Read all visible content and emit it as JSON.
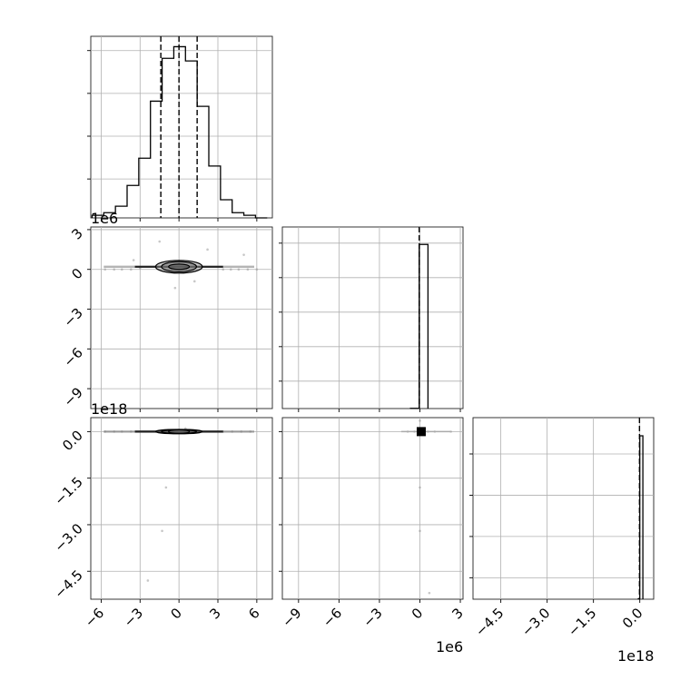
{
  "chart_data": {
    "type": "corner",
    "grid": true,
    "panels": [
      {
        "id": "hist-0",
        "type": "bar",
        "xlim": [
          -6.8,
          7.2
        ],
        "bin_edges": [
          -6.7,
          -5.8,
          -4.9,
          -4.0,
          -3.1,
          -2.2,
          -1.3,
          -0.4,
          0.5,
          1.4,
          2.3,
          3.2,
          4.1,
          5.0,
          5.9,
          6.8
        ],
        "counts": [
          2,
          4,
          9,
          25,
          46,
          90,
          123,
          132,
          121,
          86,
          40,
          14,
          4,
          2,
          0
        ],
        "ylim": [
          0,
          140
        ],
        "quantiles": [
          -1.4,
          0.0,
          1.4
        ],
        "ytick_values": [
          30,
          63,
          96,
          129
        ]
      },
      {
        "id": "scatter-1-0",
        "type": "scatter",
        "xlim": [
          -6.8,
          7.2
        ],
        "ylim": [
          -10.5,
          3.2
        ],
        "yticks": [
          3,
          0,
          -3,
          -6,
          -9
        ],
        "y_offset_label": "1e6",
        "contour_center": [
          0,
          0.2
        ],
        "contour_widths": [
          1.8,
          1.35,
          0.8
        ],
        "contour_heights": [
          0.48,
          0.38,
          0.2
        ],
        "points": [
          [
            -5.7,
            0
          ],
          [
            -5,
            0
          ],
          [
            -4.4,
            0
          ],
          [
            -3.7,
            0
          ],
          [
            -3,
            0.1
          ],
          [
            3.4,
            0
          ],
          [
            4,
            0
          ],
          [
            4.6,
            0
          ],
          [
            5.3,
            0
          ],
          [
            6,
            0
          ],
          [
            -1.5,
            2.1
          ],
          [
            2.2,
            1.5
          ],
          [
            5,
            1.1
          ],
          [
            -0.3,
            -1.4
          ],
          [
            1.2,
            -0.9
          ],
          [
            -3.5,
            0.7
          ]
        ]
      },
      {
        "id": "hist-1",
        "type": "bar",
        "xlim": [
          -10.2,
          3.2
        ],
        "bin_edges": [
          -0.7,
          -0.05,
          0.6
        ],
        "counts": [
          1,
          994
        ],
        "ylim": [
          0,
          1100
        ],
        "quantiles": [
          -0.05
        ],
        "ytick_values": [
          166,
          375,
          584,
          793,
          1002
        ]
      },
      {
        "id": "scatter-2-0",
        "type": "scatter",
        "xlim": [
          -6.8,
          7.2
        ],
        "ylim": [
          -5.4,
          0.45
        ],
        "yticks": [
          0.0,
          -1.5,
          -3.0,
          -4.5
        ],
        "y_offset_label": "1e18",
        "contour_center": [
          0,
          0
        ],
        "contour_widths": [
          1.8,
          1.35,
          0.8
        ],
        "contour_heights": [
          0.07,
          0.055,
          0.03
        ],
        "points": [
          [
            -5.7,
            0
          ],
          [
            -5,
            0
          ],
          [
            -4.4,
            0
          ],
          [
            -3.7,
            0
          ],
          [
            3.4,
            0
          ],
          [
            4.1,
            0
          ],
          [
            4.8,
            0
          ],
          [
            5.5,
            0
          ],
          [
            -1,
            -1.8
          ],
          [
            -1.3,
            -3.2
          ],
          [
            -2.4,
            -4.8
          ],
          [
            0.5,
            0.1
          ]
        ]
      },
      {
        "id": "scatter-2-1",
        "type": "scatter",
        "xlim": [
          -10.2,
          3.2
        ],
        "ylim": [
          -5.4,
          0.45
        ],
        "marker_center": [
          0.1,
          0
        ],
        "points": [
          [
            -0.9,
            0
          ],
          [
            -0.4,
            0
          ],
          [
            0.6,
            0
          ],
          [
            1.1,
            0
          ],
          [
            2.3,
            0
          ],
          [
            0,
            0.35
          ],
          [
            0,
            -1.8
          ],
          [
            0,
            -3.2
          ],
          [
            0.7,
            -5.2
          ]
        ]
      },
      {
        "id": "hist-2",
        "type": "bar",
        "xlim": [
          -5.4,
          0.45
        ],
        "bin_edges": [
          -0.05,
          0.0,
          0.1
        ],
        "counts": [
          2,
          990
        ],
        "ylim": [
          0,
          1100
        ],
        "quantiles": [
          -0.01
        ],
        "ytick_values": [
          130,
          380,
          630,
          880
        ]
      }
    ],
    "x_axes": [
      {
        "id": "x-0",
        "ticks": [
          -6,
          -3,
          0,
          3,
          6
        ]
      },
      {
        "id": "x-1",
        "ticks": [
          -9,
          -6,
          -3,
          0,
          3
        ],
        "offset_label": "1e6"
      },
      {
        "id": "x-2",
        "ticks": [
          -4.5,
          -3.0,
          -1.5,
          0.0
        ],
        "offset_label": "1e18"
      }
    ]
  }
}
